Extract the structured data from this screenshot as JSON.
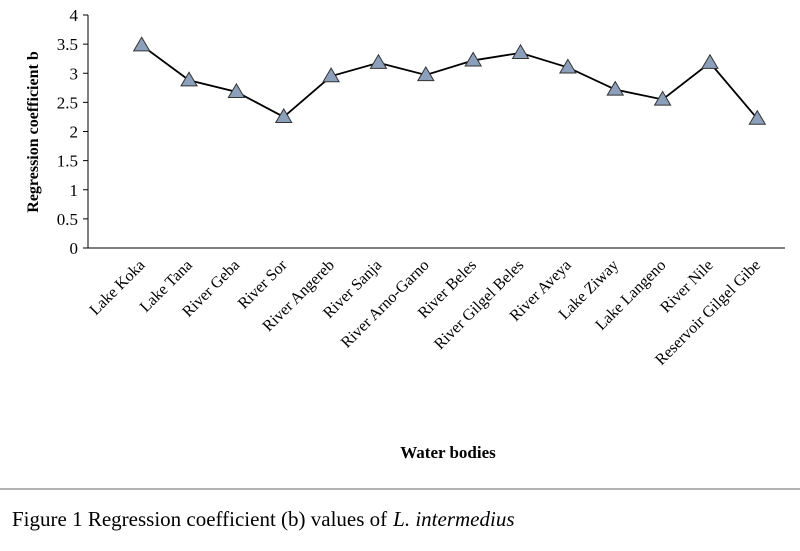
{
  "chart_data": {
    "type": "line",
    "y_axis_label": "Regression coefficient  b",
    "x_axis_label": "Water bodies",
    "caption": [
      "Figure 1 Regression coefficient (b) values of",
      "L. intermedius"
    ],
    "categories": [
      "Lake Koka",
      "Lake Tana",
      "River Geba",
      "River Sor",
      "River Angereb",
      "River Sanja",
      "River Arno-Garno",
      "River Beles",
      "River Gilgel Beles",
      "River Aveya",
      "Lake Ziway",
      "Lake Langeno",
      "River Nile",
      "Reservoir Gilgel Gibe"
    ],
    "values": [
      3.48,
      2.88,
      2.68,
      2.25,
      2.95,
      3.18,
      2.97,
      3.22,
      3.35,
      3.1,
      2.72,
      2.55,
      3.18,
      2.22
    ],
    "color": "#8da0bb",
    "ylim": [
      0,
      4
    ],
    "yticks": [
      0,
      0.5,
      1,
      1.5,
      2,
      2.5,
      3,
      3.5,
      4
    ],
    "grid": false
  }
}
